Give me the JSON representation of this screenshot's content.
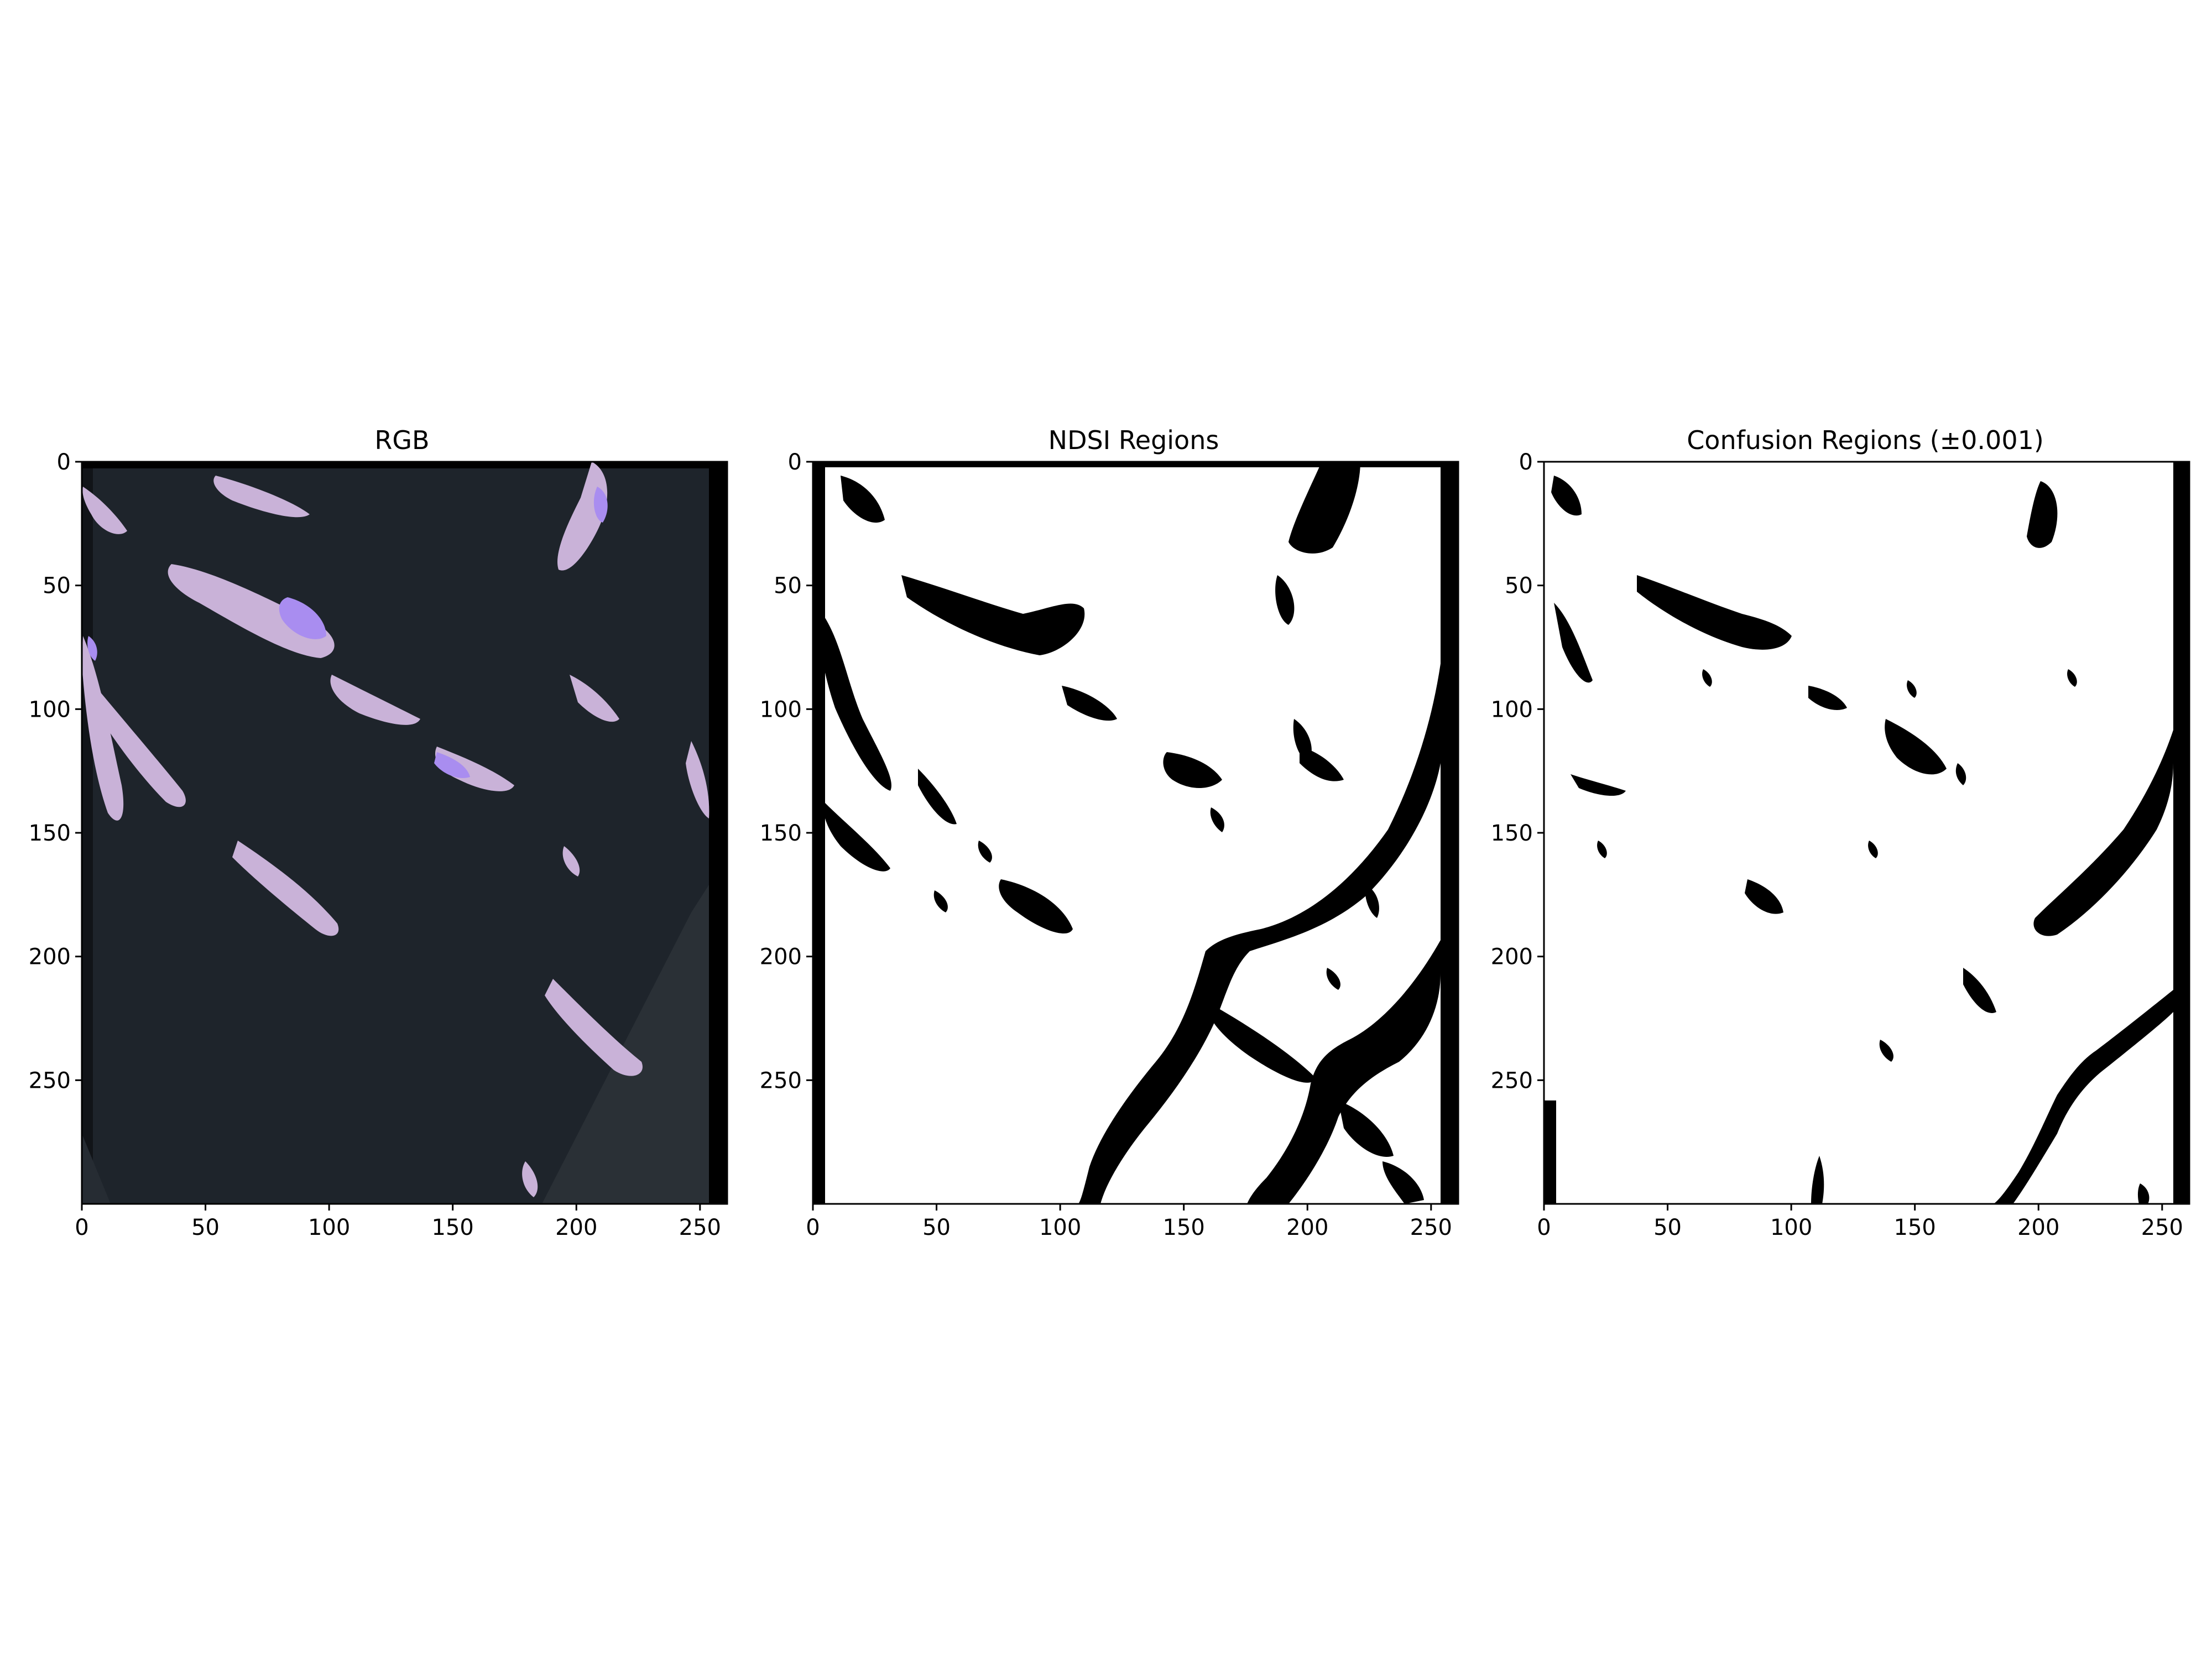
{
  "chart_data": [
    {
      "type": "heatmap",
      "title": "RGB",
      "image_kind": "rgb",
      "xlim": [
        0,
        261
      ],
      "ylim": [
        0,
        300
      ],
      "y_inverted": true,
      "x_ticks": [
        0,
        50,
        100,
        150,
        200,
        250
      ],
      "y_ticks": [
        0,
        50,
        100,
        150,
        200,
        250
      ],
      "colors": {
        "background": "#1e242b",
        "snow": "#c9b2d8",
        "snow_bright": "#a98df0",
        "edge": "#000000"
      }
    },
    {
      "type": "heatmap",
      "title": "NDSI Regions",
      "image_kind": "binary",
      "xlim": [
        0,
        261
      ],
      "ylim": [
        0,
        300
      ],
      "y_inverted": true,
      "x_ticks": [
        0,
        50,
        100,
        150,
        200,
        250
      ],
      "y_ticks": [
        0,
        50,
        100,
        150,
        200,
        250
      ],
      "colors": {
        "background": "#ffffff",
        "mask": "#000000"
      }
    },
    {
      "type": "heatmap",
      "title": "Confusion Regions (±0.001)",
      "image_kind": "binary",
      "xlim": [
        0,
        261
      ],
      "ylim": [
        0,
        300
      ],
      "y_inverted": true,
      "x_ticks": [
        0,
        50,
        100,
        150,
        200,
        250
      ],
      "y_ticks": [
        0,
        50,
        100,
        150,
        200,
        250
      ],
      "colors": {
        "background": "#ffffff",
        "mask": "#000000"
      }
    }
  ]
}
